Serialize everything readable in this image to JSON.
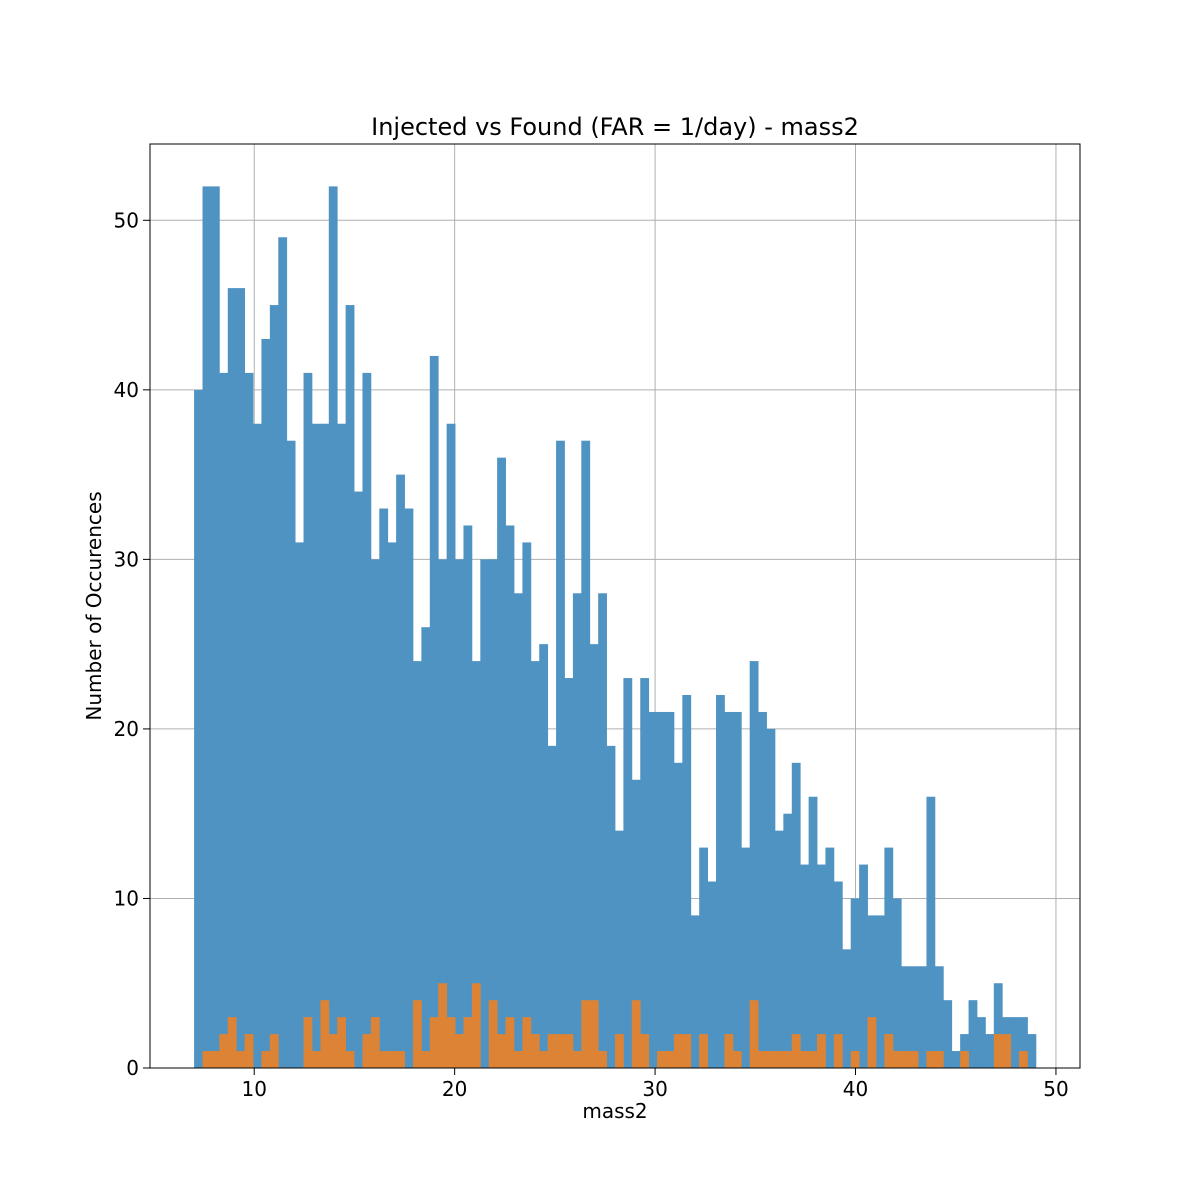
{
  "chart_data": {
    "type": "bar",
    "title": "Injected vs Found (FAR = 1/day) - mass2",
    "xlabel": "mass2",
    "ylabel": "Number of Occurences",
    "xlim": [
      4.8,
      51.2
    ],
    "ylim": [
      0,
      54.5
    ],
    "xticks": [
      10,
      20,
      30,
      40,
      50
    ],
    "yticks": [
      0,
      10,
      20,
      30,
      40,
      50
    ],
    "grid": true,
    "bin_start": 7.0,
    "bin_width": 0.42,
    "series": [
      {
        "color": "#4f93c3",
        "values": [
          40,
          52,
          52,
          41,
          46,
          46,
          41,
          38,
          43,
          45,
          49,
          37,
          31,
          41,
          38,
          38,
          52,
          38,
          45,
          34,
          41,
          30,
          33,
          31,
          35,
          33,
          24,
          26,
          42,
          30,
          38,
          30,
          32,
          24,
          30,
          30,
          36,
          32,
          28,
          31,
          24,
          25,
          19,
          37,
          23,
          28,
          37,
          25,
          28,
          19,
          14,
          23,
          17,
          23,
          21,
          21,
          21,
          18,
          22,
          9,
          13,
          11,
          22,
          21,
          21,
          13,
          24,
          21,
          20,
          14,
          15,
          18,
          12,
          16,
          12,
          13,
          11,
          7,
          10,
          12,
          9,
          9,
          13,
          10,
          6,
          6,
          6,
          16,
          6,
          4,
          1,
          2,
          4,
          3,
          2,
          5,
          3,
          3,
          3,
          2
        ]
      },
      {
        "color": "#dd8335",
        "values": [
          0,
          1,
          1,
          2,
          3,
          1,
          2,
          0,
          1,
          2,
          0,
          0,
          0,
          3,
          1,
          4,
          2,
          3,
          1,
          0,
          2,
          3,
          1,
          1,
          1,
          0,
          4,
          1,
          3,
          5,
          3,
          2,
          3,
          5,
          0,
          4,
          2,
          3,
          1,
          3,
          2,
          1,
          2,
          2,
          2,
          1,
          4,
          4,
          1,
          0,
          2,
          0,
          4,
          2,
          0,
          1,
          1,
          2,
          2,
          0,
          2,
          0,
          0,
          2,
          1,
          0,
          4,
          1,
          1,
          1,
          1,
          2,
          1,
          1,
          2,
          0,
          2,
          0,
          1,
          0,
          3,
          0,
          2,
          1,
          1,
          1,
          0,
          1,
          1,
          0,
          0,
          1,
          0,
          0,
          0,
          2,
          2,
          0,
          1,
          0
        ]
      }
    ]
  }
}
